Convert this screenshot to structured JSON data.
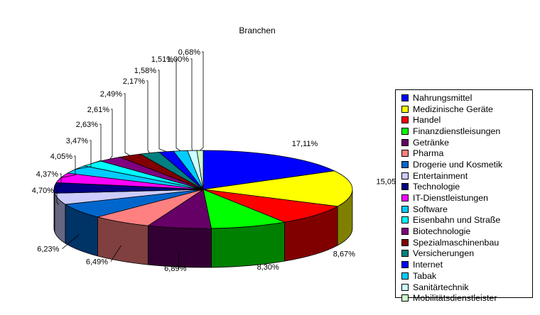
{
  "chart_data": {
    "type": "pie",
    "title": "Branchen",
    "legend_position": "right",
    "slices": [
      {
        "name": "Nahrungsmittel",
        "value": 17.11,
        "label": "17,11%",
        "color": "#0000ff"
      },
      {
        "name": "Medizinische Geräte",
        "value": 15.05,
        "label": "15,05%",
        "color": "#ffff00"
      },
      {
        "name": "Handel",
        "value": 8.67,
        "label": "8,67%",
        "color": "#ff0000"
      },
      {
        "name": "Finanzdienstleisungen",
        "value": 8.3,
        "label": "8,30%",
        "color": "#00ff00"
      },
      {
        "name": "Getränke",
        "value": 6.89,
        "label": "6,89%",
        "color": "#660066"
      },
      {
        "name": "Pharma",
        "value": 6.49,
        "label": "6,49%",
        "color": "#ff8080"
      },
      {
        "name": "Drogerie und Kosmetik",
        "value": 6.23,
        "label": "6,23%",
        "color": "#0066cc"
      },
      {
        "name": "Entertainment",
        "value": 4.7,
        "label": "4,70%",
        "color": "#ccccff"
      },
      {
        "name": "Technologie",
        "value": 4.37,
        "label": "4,37%",
        "color": "#000080"
      },
      {
        "name": "IT-Dienstleistungen",
        "value": 4.05,
        "label": "4,05%",
        "color": "#ff00ff"
      },
      {
        "name": "Software",
        "value": 3.47,
        "label": "3,47%",
        "color": "#00ccff"
      },
      {
        "name": "Eisenbahn und Straße",
        "value": 2.63,
        "label": "2,63%",
        "color": "#00ffff"
      },
      {
        "name": "Biotechnologie",
        "value": 2.61,
        "label": "2,61%",
        "color": "#800080"
      },
      {
        "name": "Spezialmaschinenbau",
        "value": 2.49,
        "label": "2,49%",
        "color": "#800000"
      },
      {
        "name": "Versicherungen",
        "value": 2.17,
        "label": "2,17%",
        "color": "#008080"
      },
      {
        "name": "Internet",
        "value": 1.58,
        "label": "1,58%",
        "color": "#0000ff"
      },
      {
        "name": "Tabak",
        "value": 1.51,
        "label": "1,51%",
        "color": "#00ccff"
      },
      {
        "name": "Sanitärtechnik",
        "value": 1.0,
        "label": "1,00%",
        "color": "#ccffff"
      },
      {
        "name": "Mobilitätsdienstleister",
        "value": 0.68,
        "label": "0,68%",
        "color": "#ccffcc"
      }
    ]
  }
}
